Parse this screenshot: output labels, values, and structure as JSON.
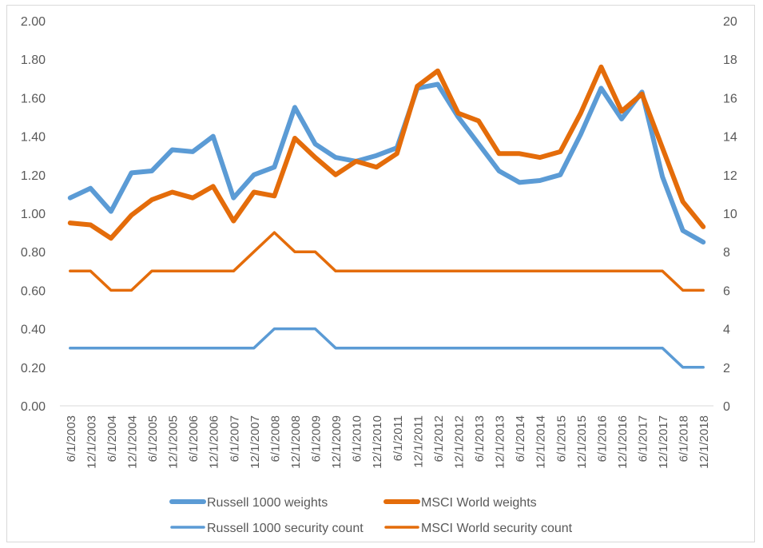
{
  "chart_data": {
    "type": "line",
    "title": "",
    "x": [
      "6/1/2003",
      "12/1/2003",
      "6/1/2004",
      "12/1/2004",
      "6/1/2005",
      "12/1/2005",
      "6/1/2006",
      "12/1/2006",
      "6/1/2007",
      "12/1/2007",
      "6/1/2008",
      "12/1/2008",
      "6/1/2009",
      "12/1/2009",
      "6/1/2010",
      "12/1/2010",
      "6/1/2011",
      "12/1/2011",
      "6/1/2012",
      "12/1/2012",
      "6/1/2013",
      "12/1/2013",
      "6/1/2014",
      "12/1/2014",
      "6/1/2015",
      "12/1/2015",
      "6/1/2016",
      "12/1/2016",
      "6/1/2017",
      "12/1/2017",
      "6/1/2018",
      "12/1/2018"
    ],
    "y_left": {
      "min": 0,
      "max": 2,
      "ticks": [
        "0.00",
        "0.20",
        "0.40",
        "0.60",
        "0.80",
        "1.00",
        "1.20",
        "1.40",
        "1.60",
        "1.80",
        "2.00"
      ]
    },
    "y_right": {
      "min": 0,
      "max": 20,
      "ticks": [
        "0",
        "2",
        "4",
        "6",
        "8",
        "10",
        "12",
        "14",
        "16",
        "18",
        "20"
      ]
    },
    "grid": false,
    "legend_position": "bottom",
    "series": [
      {
        "name": "Russell 1000 weights",
        "axis": "left",
        "color": "#5b9bd5",
        "weight": "thick",
        "values": [
          1.08,
          1.13,
          1.01,
          1.21,
          1.22,
          1.33,
          1.32,
          1.4,
          1.08,
          1.2,
          1.24,
          1.55,
          1.36,
          1.29,
          1.27,
          1.3,
          1.34,
          1.65,
          1.67,
          1.5,
          1.36,
          1.22,
          1.16,
          1.17,
          1.2,
          1.41,
          1.65,
          1.49,
          1.63,
          1.19,
          0.91,
          0.85
        ]
      },
      {
        "name": "MSCI World weights",
        "axis": "left",
        "color": "#e46c0a",
        "weight": "thick",
        "values": [
          0.95,
          0.94,
          0.87,
          0.99,
          1.07,
          1.11,
          1.08,
          1.14,
          0.96,
          1.11,
          1.09,
          1.39,
          1.29,
          1.2,
          1.27,
          1.24,
          1.31,
          1.66,
          1.74,
          1.52,
          1.48,
          1.31,
          1.31,
          1.29,
          1.32,
          1.52,
          1.76,
          1.53,
          1.62,
          1.34,
          1.06,
          0.93
        ]
      },
      {
        "name": "Russell 1000 security count",
        "axis": "right",
        "color": "#5b9bd5",
        "weight": "thin",
        "values": [
          3,
          3,
          3,
          3,
          3,
          3,
          3,
          3,
          3,
          3,
          4,
          4,
          4,
          3,
          3,
          3,
          3,
          3,
          3,
          3,
          3,
          3,
          3,
          3,
          3,
          3,
          3,
          3,
          3,
          3,
          2,
          2
        ]
      },
      {
        "name": "MSCI World security count",
        "axis": "right",
        "color": "#e46c0a",
        "weight": "thin",
        "values": [
          7,
          7,
          6,
          6,
          7,
          7,
          7,
          7,
          7,
          8,
          9,
          8,
          8,
          7,
          7,
          7,
          7,
          7,
          7,
          7,
          7,
          7,
          7,
          7,
          7,
          7,
          7,
          7,
          7,
          7,
          6,
          6
        ]
      }
    ]
  }
}
